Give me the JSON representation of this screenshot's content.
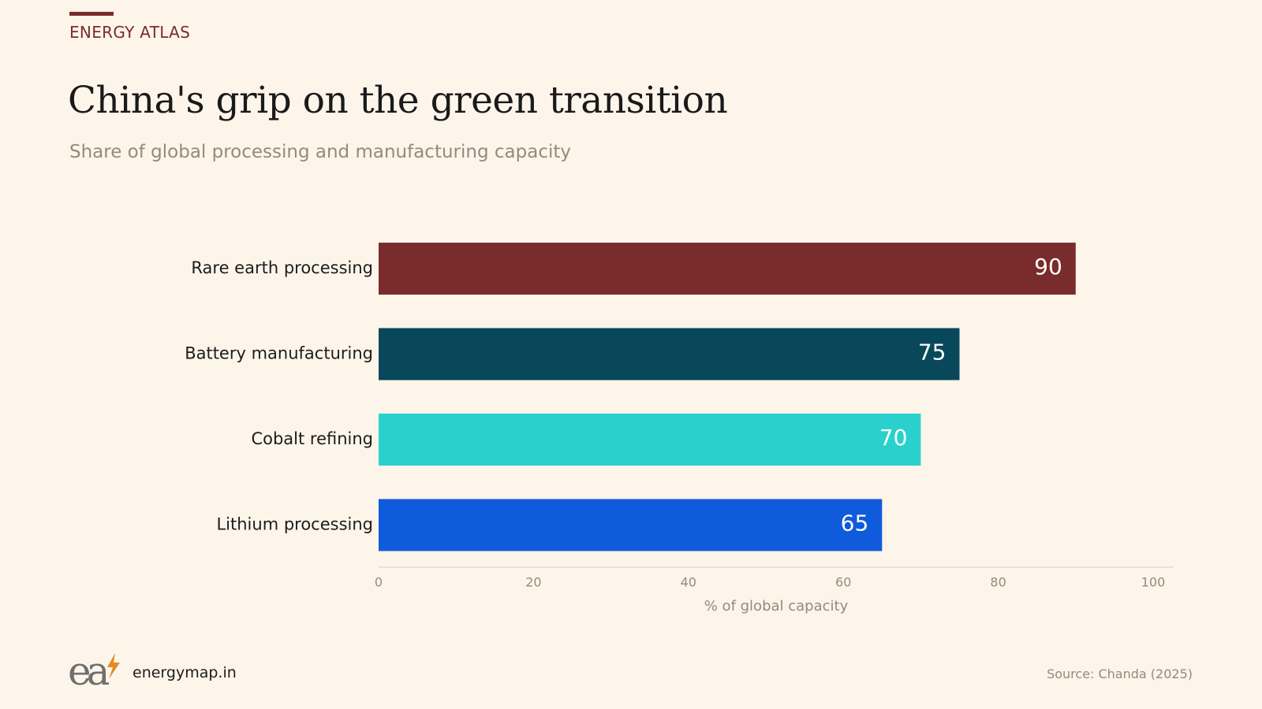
{
  "header": {
    "kicker": "ENERGY ATLAS",
    "title": "China's grip on the green transition",
    "subtitle": "Share of global processing and manufacturing capacity"
  },
  "footer": {
    "site": "energymap.in",
    "source": "Source: Chanda (2025)",
    "logo_text": "ea"
  },
  "colors": {
    "background": "#fdf5ea",
    "accent": "#7a2c2d",
    "axis_text": "#958a7b"
  },
  "chart_data": {
    "type": "bar",
    "orientation": "horizontal",
    "categories": [
      "Rare earth processing",
      "Battery manufacturing",
      "Cobalt refining",
      "Lithium processing"
    ],
    "values": [
      90,
      75,
      70,
      65
    ],
    "bar_colors": [
      "#7a2c2d",
      "#08485a",
      "#2ad1cc",
      "#105bdb"
    ],
    "xlabel": "% of global capacity",
    "xlim": [
      0,
      100
    ],
    "xticks": [
      0,
      20,
      40,
      60,
      80,
      100
    ],
    "grid": false,
    "data_labels": true
  }
}
